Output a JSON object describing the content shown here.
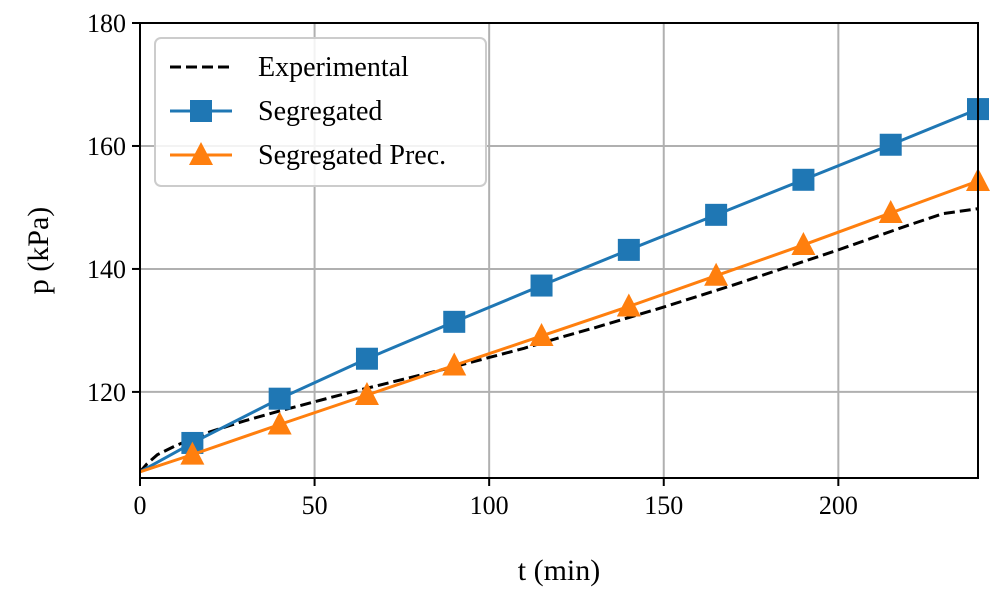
{
  "chart_data": {
    "type": "line",
    "xlabel": "t (min)",
    "ylabel": "p (kPa)",
    "xlim": [
      0,
      240
    ],
    "ylim": [
      106,
      180
    ],
    "xticks": [
      "0",
      "50",
      "100",
      "150",
      "200"
    ],
    "yticks": [
      "120",
      "140",
      "160",
      "180"
    ],
    "xtick_values": [
      0,
      50,
      100,
      150,
      200
    ],
    "ytick_values": [
      120,
      140,
      160,
      180
    ],
    "grid": true,
    "legend_position": "top-left",
    "series": [
      {
        "name": "Experimental",
        "color": "#000000",
        "style": "dashed",
        "marker": "none",
        "x": [
          0,
          2,
          5,
          10,
          15,
          20,
          30,
          40,
          50,
          60,
          70,
          80,
          90,
          100,
          110,
          120,
          130,
          140,
          150,
          160,
          170,
          180,
          190,
          200,
          210,
          220,
          230,
          240
        ],
        "y": [
          107,
          108.3,
          109.8,
          111.2,
          112.4,
          113.5,
          115.3,
          116.9,
          118.4,
          119.9,
          121.3,
          122.7,
          124.1,
          125.6,
          127.1,
          128.8,
          130.4,
          132.1,
          133.8,
          135.6,
          137.4,
          139.3,
          141.2,
          143.1,
          145.1,
          147.1,
          149.0,
          149.8
        ]
      },
      {
        "name": "Segregated",
        "color": "#1f77b4",
        "style": "solid",
        "marker": "square",
        "x": [
          0,
          15,
          40,
          65,
          90,
          115,
          140,
          165,
          190,
          215,
          240
        ],
        "y": [
          107,
          111.7,
          118.9,
          125.4,
          131.4,
          137.3,
          143.1,
          148.8,
          154.5,
          160.2,
          166.0
        ]
      },
      {
        "name": "Segregated Prec.",
        "color": "#ff7f0e",
        "style": "solid",
        "marker": "triangle",
        "x": [
          0,
          15,
          40,
          65,
          90,
          115,
          140,
          165,
          190,
          215,
          240
        ],
        "y": [
          107,
          109.8,
          114.7,
          119.5,
          124.3,
          129.1,
          133.9,
          138.9,
          143.9,
          149.1,
          154.3
        ]
      }
    ]
  }
}
